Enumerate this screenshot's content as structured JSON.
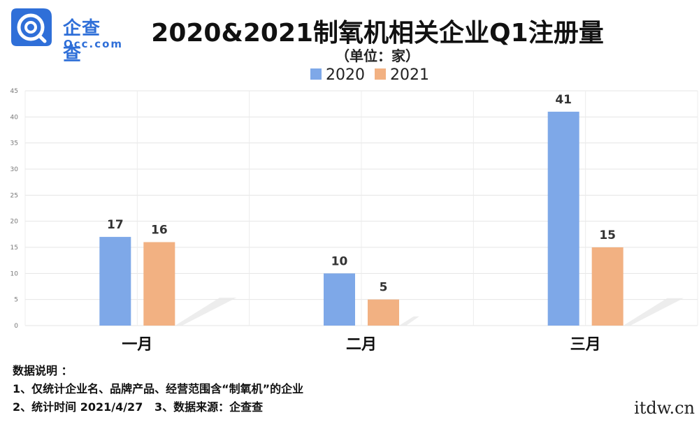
{
  "logo": {
    "text_cn": "企查查",
    "text_en": "Qcc.com",
    "brand_color": "#2f6fd8"
  },
  "title": "2020&2021制氧机相关企业Q1注册量",
  "unit": "（单位：家）",
  "chart_data": {
    "type": "bar",
    "categories": [
      "一月",
      "二月",
      "三月"
    ],
    "series": [
      {
        "name": "2020",
        "values": [
          17,
          10,
          41
        ],
        "color": "#7ea8e8"
      },
      {
        "name": "2021",
        "values": [
          16,
          5,
          15
        ],
        "color": "#f2b182"
      }
    ],
    "ylim": [
      0,
      45
    ],
    "yticks": [
      0,
      5,
      10,
      15,
      20,
      25,
      30,
      35,
      40,
      45
    ],
    "grid": true,
    "legend": "top-center"
  },
  "notes": {
    "heading": "数据说明 ：",
    "line1": "1、仅统计企业名、品牌产品、经营范围含“制氧机”的企业",
    "line2": "2、统计时间 2021/4/27   3、数据来源：企查查"
  },
  "watermark": "itdw.cn"
}
